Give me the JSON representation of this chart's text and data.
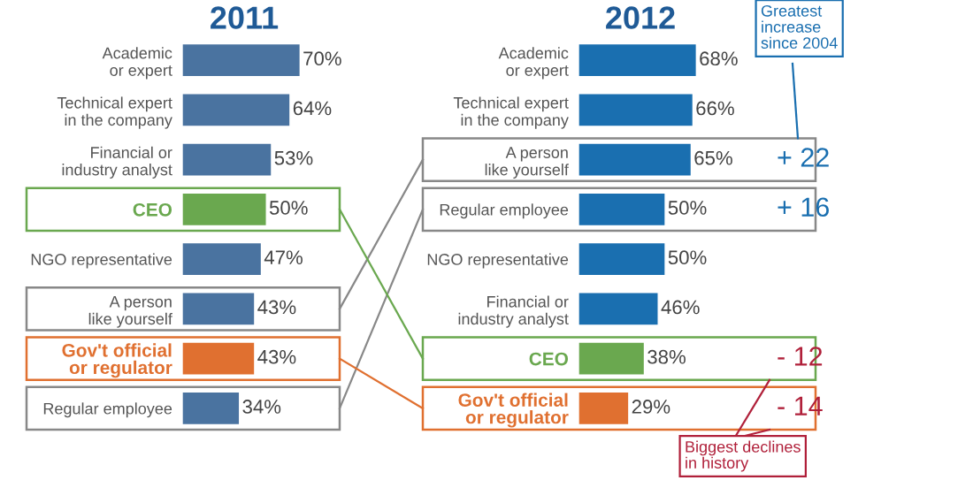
{
  "chart_data": [
    {
      "type": "bar",
      "orientation": "horizontal",
      "title": "2011",
      "tick_labels": "y",
      "categories": [
        "Academic\nor expert",
        "Technical expert\nin the company",
        "Financial or\nindustry analyst",
        "CEO",
        "NGO representative",
        "A person\nlike yourself",
        "Gov't official\nor regulator",
        "Regular employee"
      ],
      "values": [
        70,
        64,
        53,
        50,
        47,
        43,
        43,
        34
      ],
      "color": "#4a73a0",
      "colors": [
        "#4a73a0",
        "#4a73a0",
        "#4a73a0",
        "#6aa84f",
        "#4a73a0",
        "#4a73a0",
        "#e07030",
        "#4a73a0"
      ],
      "value_labels": [
        "70%",
        "64%",
        "53%",
        "50%",
        "47%",
        "43%",
        "43%",
        "34%"
      ]
    },
    {
      "type": "bar",
      "orientation": "horizontal",
      "title": "2012",
      "tick_labels": "y",
      "categories": [
        "Academic\nor expert",
        "Technical expert\nin the company",
        "A person\nlike yourself",
        "Regular employee",
        "NGO representative",
        "Financial or\nindustry analyst",
        "CEO",
        "Gov't official\nor regulator"
      ],
      "values": [
        68,
        66,
        65,
        50,
        50,
        46,
        38,
        29
      ],
      "color": "#1a6fb0",
      "colors": [
        "#1a6fb0",
        "#1a6fb0",
        "#1a6fb0",
        "#1a6fb0",
        "#1a6fb0",
        "#1a6fb0",
        "#6aa84f",
        "#e07030"
      ],
      "value_labels": [
        "68%",
        "66%",
        "65%",
        "50%",
        "50%",
        "46%",
        "38%",
        "29%"
      ],
      "annotations": [
        "+ 22",
        "+ 16",
        "- 12",
        "- 14",
        "Greatest\nincrease\nsince 2004",
        "Biggest declines\nin history"
      ]
    }
  ]
}
